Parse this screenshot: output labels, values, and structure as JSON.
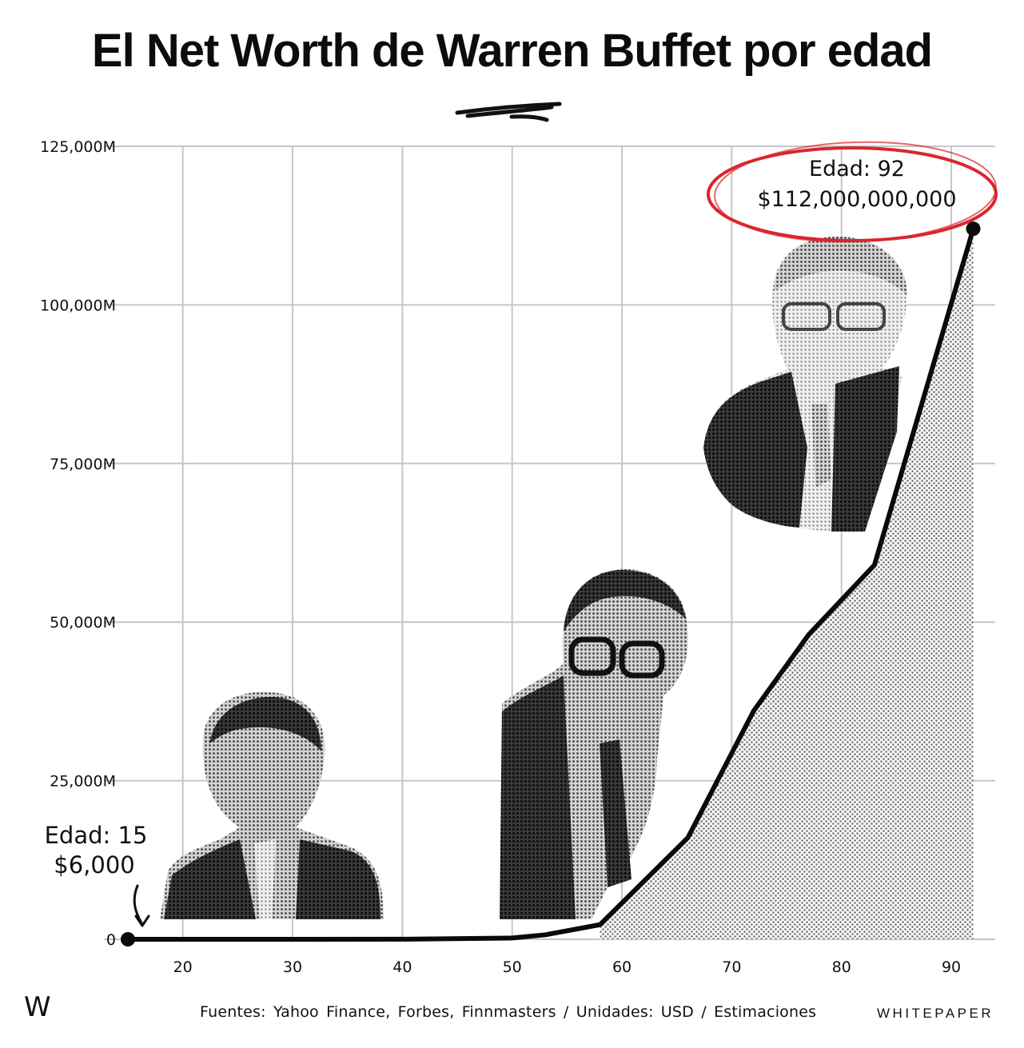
{
  "title": "El Net Worth de Warren Buffet por edad",
  "colors": {
    "line": "#0a0a0a",
    "grid": "#c6c6c6",
    "highlight": "#d9262e",
    "fill": "#8e8e8e"
  },
  "chart_data": {
    "type": "area",
    "x": [
      15,
      30,
      40,
      50,
      53,
      58,
      66,
      72,
      77,
      83,
      92
    ],
    "values": [
      0.006,
      1,
      10,
      200,
      700,
      2300,
      16000,
      36000,
      48000,
      59000,
      112000
    ],
    "x_ticks": [
      "20",
      "30",
      "40",
      "50",
      "60",
      "70",
      "80",
      "90"
    ],
    "y_ticks": [
      "0",
      "25,000M",
      "50,000M",
      "75,000M",
      "100,000M",
      "125,000M"
    ],
    "xlim": [
      15,
      94
    ],
    "ylim": [
      0,
      125000
    ],
    "grid": true,
    "annotations": [
      {
        "line1": "Edad: 15",
        "line2": "$6,000"
      },
      {
        "line1": "Edad: 92",
        "line2": "$112,000,000,000"
      }
    ],
    "portraits": [
      "portrait-young",
      "portrait-middle",
      "portrait-old"
    ]
  },
  "footer": {
    "logo": "W",
    "source": "Fuentes: Yahoo Finance, Forbes, Finnmasters / Unidades: USD / Estimaciones",
    "brand": "WHITEPAPER"
  }
}
